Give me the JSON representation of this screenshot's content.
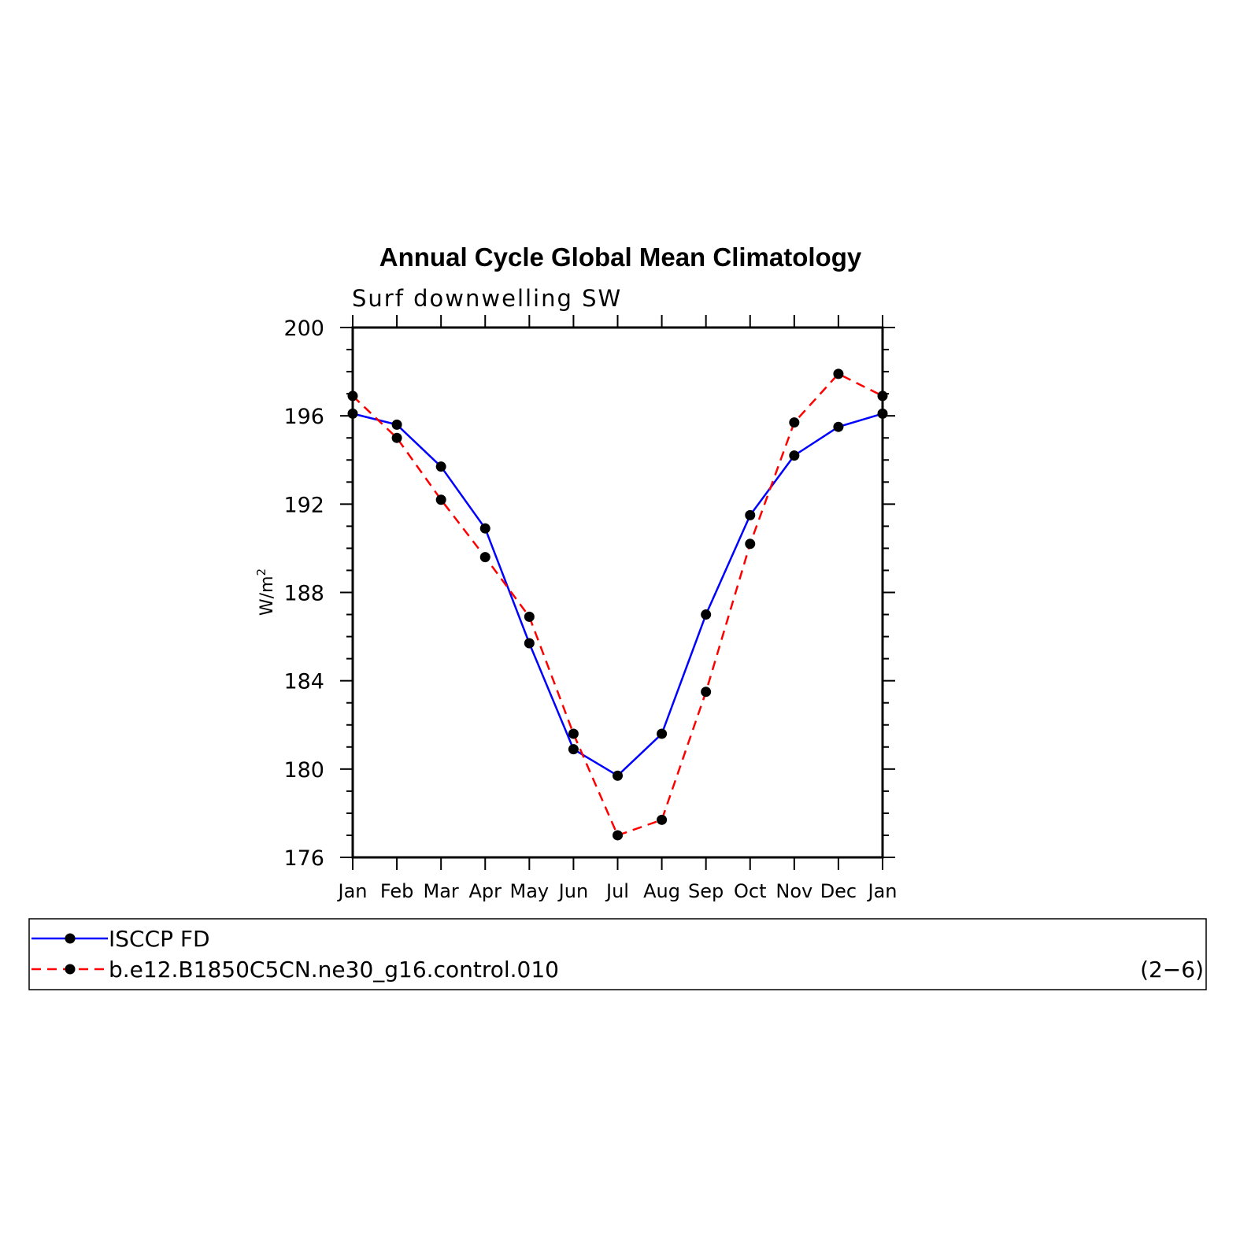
{
  "chart_data": {
    "type": "line",
    "title": "Annual Cycle Global Mean Climatology",
    "subtitle": "Surf downwelling SW",
    "ylabel": "W/m",
    "ylabel_superscript": "2",
    "xlabel": "",
    "ylim": [
      176,
      200
    ],
    "yticks": [
      "176",
      "180",
      "184",
      "188",
      "192",
      "196",
      "200"
    ],
    "categories": [
      "Jan",
      "Feb",
      "Mar",
      "Apr",
      "May",
      "Jun",
      "Jul",
      "Aug",
      "Sep",
      "Oct",
      "Nov",
      "Dec",
      "Jan"
    ],
    "series": [
      {
        "name": "ISCCP FD",
        "color": "#0000ff",
        "style": "solid",
        "values": [
          196.1,
          195.6,
          193.7,
          190.9,
          185.7,
          180.9,
          179.7,
          181.6,
          187.0,
          191.5,
          194.2,
          195.5,
          196.1
        ]
      },
      {
        "name": "b.e12.B1850C5CN.ne30_g16.control.010",
        "color": "#ff0000",
        "style": "dashed",
        "values": [
          196.9,
          195.0,
          192.2,
          189.6,
          186.9,
          181.6,
          177.0,
          177.7,
          183.5,
          190.2,
          195.7,
          197.9,
          196.9
        ]
      }
    ],
    "grid": false,
    "legend_position": "bottom"
  },
  "panel_id": "(2−6)"
}
